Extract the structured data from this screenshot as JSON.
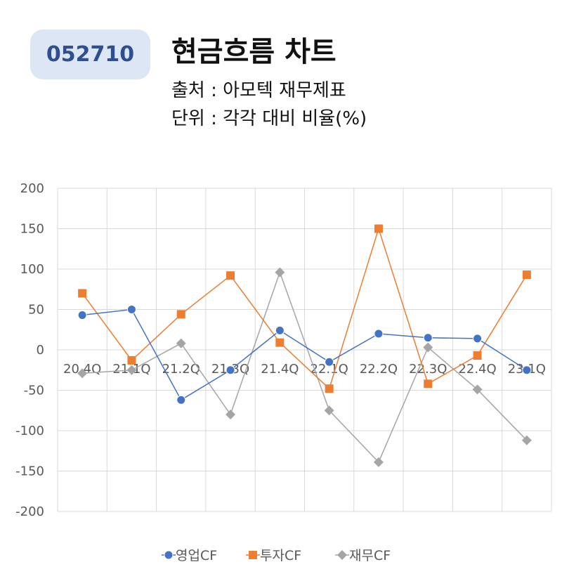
{
  "header": {
    "code": "052710",
    "title": "현금흐름 차트",
    "source": "출처 : 아모텍 재무제표",
    "unit": "단위 : 각각 대비 비율(%)"
  },
  "chart_data": {
    "type": "line",
    "categories": [
      "20.4Q",
      "21.1Q",
      "21.2Q",
      "21.3Q",
      "21.4Q",
      "22.1Q",
      "22.2Q",
      "22.3Q",
      "22.4Q",
      "23.1Q"
    ],
    "ylim": [
      -200,
      200
    ],
    "yticks": [
      200,
      150,
      100,
      50,
      0,
      -50,
      -100,
      -150,
      -200
    ],
    "grid": true,
    "legend_position": "bottom",
    "series": [
      {
        "name": "영업CF",
        "color": "#4472c4",
        "marker": "circle",
        "values": [
          43,
          50,
          -62,
          -25,
          24,
          -15,
          20,
          15,
          14,
          -25
        ]
      },
      {
        "name": "투자CF",
        "color": "#ed7d31",
        "marker": "square",
        "values": [
          70,
          -13,
          44,
          92,
          9,
          -48,
          150,
          -42,
          -7,
          93
        ]
      },
      {
        "name": "재무CF",
        "color": "#a5a5a5",
        "marker": "diamond",
        "values": [
          -29,
          -25,
          8,
          -80,
          96,
          -75,
          -139,
          3,
          -49,
          -112
        ]
      }
    ]
  }
}
